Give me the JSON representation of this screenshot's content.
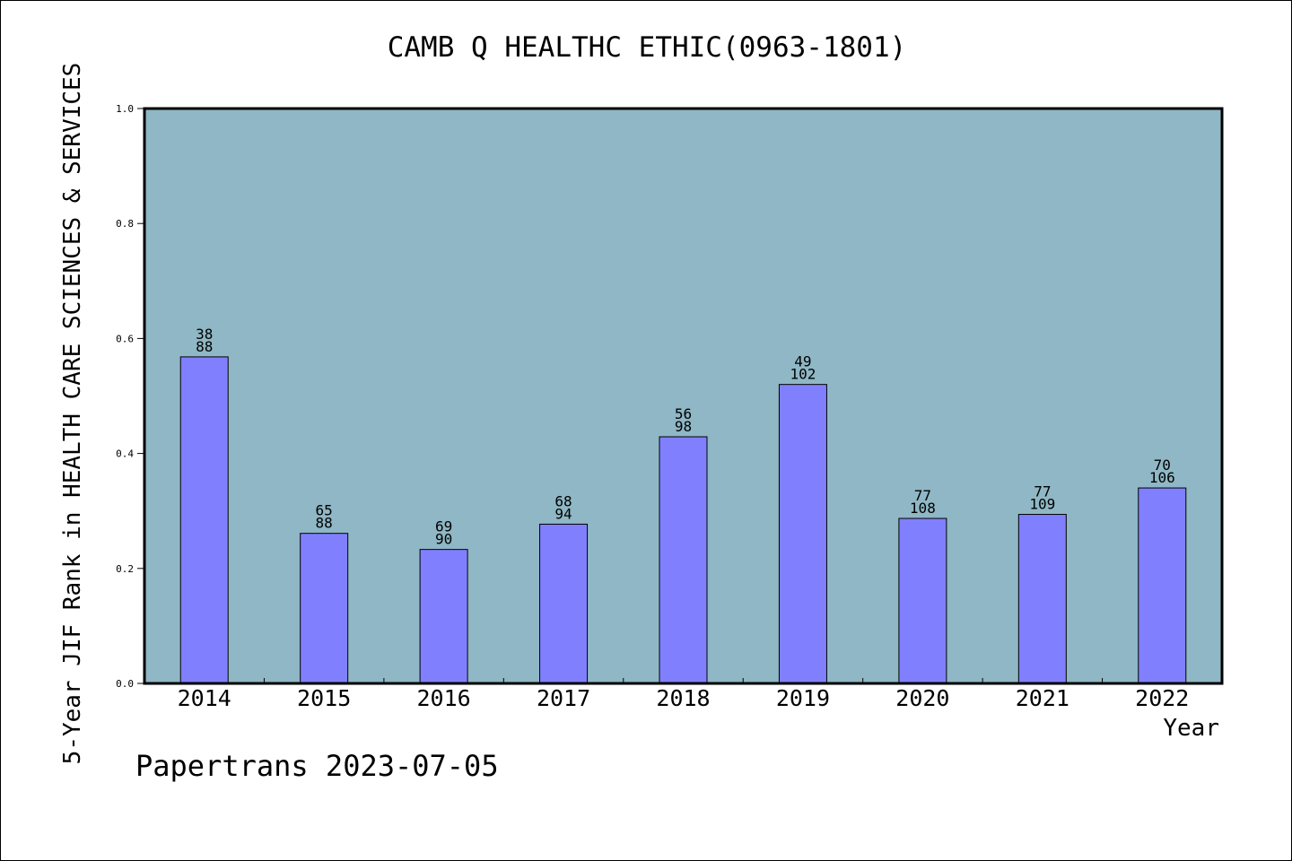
{
  "chart_title": "CAMB Q HEALTHC ETHIC(0963-1801)",
  "footer_text": "Papertrans 2023-07-05",
  "colors": {
    "plot_background": "#8fb7c5",
    "bar_fill": "#8080ff",
    "bar_stroke": "#000000"
  },
  "chart_data": {
    "type": "bar",
    "title": "CAMB Q HEALTHC ETHIC(0963-1801)",
    "xlabel": "Year",
    "ylabel": "5-Year JIF Rank in HEALTH CARE SCIENCES & SERVICES",
    "ylim": [
      0.0,
      1.0
    ],
    "yticks": [
      "0.0",
      "0.2",
      "0.4",
      "0.6",
      "0.8",
      "1.0"
    ],
    "grid": false,
    "categories": [
      "2014",
      "2015",
      "2016",
      "2017",
      "2018",
      "2019",
      "2020",
      "2021",
      "2022"
    ],
    "values": [
      0.568,
      0.261,
      0.233,
      0.277,
      0.429,
      0.52,
      0.287,
      0.294,
      0.34
    ],
    "labels": [
      [
        "38",
        "88"
      ],
      [
        "65",
        "88"
      ],
      [
        "69",
        "90"
      ],
      [
        "68",
        "94"
      ],
      [
        "56",
        "98"
      ],
      [
        "49",
        "102"
      ],
      [
        "77",
        "108"
      ],
      [
        "77",
        "109"
      ],
      [
        "70",
        "106"
      ]
    ]
  }
}
